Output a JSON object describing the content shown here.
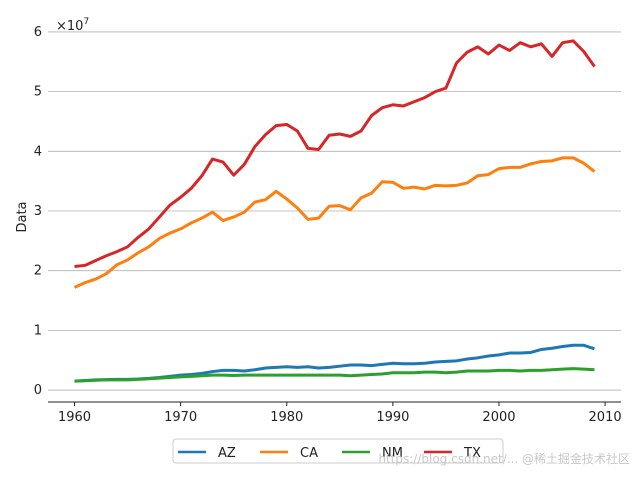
{
  "chart_data": {
    "type": "line",
    "title": "",
    "xlabel": "",
    "ylabel": "Data",
    "y_scale_label": "×10",
    "y_scale_exp": "7",
    "y_multiplier": 10000000,
    "xlim": [
      1957.5,
      2011.5
    ],
    "ylim": [
      -2000000,
      62000000
    ],
    "x_ticks": [
      1960,
      1970,
      1980,
      1990,
      2000,
      2010
    ],
    "x_tick_labels": [
      "1960",
      "1970",
      "1980",
      "1990",
      "2000",
      "2010"
    ],
    "y_ticks": [
      0,
      10000000,
      20000000,
      30000000,
      40000000,
      50000000,
      60000000
    ],
    "y_tick_labels": [
      "0",
      "1",
      "2",
      "3",
      "4",
      "5",
      "6"
    ],
    "grid": "horizontal",
    "legend_position": "bottom-center",
    "x": [
      1960,
      1961,
      1962,
      1963,
      1964,
      1965,
      1966,
      1967,
      1968,
      1969,
      1970,
      1971,
      1972,
      1973,
      1974,
      1975,
      1976,
      1977,
      1978,
      1979,
      1980,
      1981,
      1982,
      1983,
      1984,
      1985,
      1986,
      1987,
      1988,
      1989,
      1990,
      1991,
      1992,
      1993,
      1994,
      1995,
      1996,
      1997,
      1998,
      1999,
      2000,
      2001,
      2002,
      2003,
      2004,
      2005,
      2006,
      2007,
      2008,
      2009
    ],
    "series": [
      {
        "name": "AZ",
        "color": "#1f77b4",
        "values": [
          1500000,
          1600000,
          1700000,
          1750000,
          1800000,
          1800000,
          1850000,
          1950000,
          2100000,
          2300000,
          2500000,
          2600000,
          2800000,
          3100000,
          3300000,
          3300000,
          3200000,
          3400000,
          3700000,
          3800000,
          3900000,
          3800000,
          3900000,
          3700000,
          3800000,
          4000000,
          4200000,
          4200000,
          4100000,
          4300000,
          4500000,
          4400000,
          4400000,
          4500000,
          4700000,
          4800000,
          4900000,
          5200000,
          5400000,
          5700000,
          5900000,
          6200000,
          6200000,
          6300000,
          6800000,
          7000000,
          7300000,
          7500000,
          7500000,
          6900000
        ]
      },
      {
        "name": "CA",
        "color": "#ff7f0e",
        "values": [
          17200000,
          18000000,
          18600000,
          19500000,
          21000000,
          21800000,
          23000000,
          24000000,
          25400000,
          26300000,
          27000000,
          28000000,
          28800000,
          29800000,
          28400000,
          29000000,
          29800000,
          31500000,
          31900000,
          33300000,
          32000000,
          30500000,
          28600000,
          28800000,
          30800000,
          30900000,
          30200000,
          32200000,
          33000000,
          34900000,
          34800000,
          33800000,
          34000000,
          33700000,
          34300000,
          34200000,
          34300000,
          34700000,
          35900000,
          36100000,
          37100000,
          37300000,
          37300000,
          37900000,
          38300000,
          38400000,
          38900000,
          38900000,
          38000000,
          36600000
        ]
      },
      {
        "name": "NM",
        "color": "#2ca02c",
        "values": [
          1500000,
          1550000,
          1650000,
          1700000,
          1700000,
          1700000,
          1800000,
          1900000,
          2000000,
          2100000,
          2200000,
          2300000,
          2400000,
          2500000,
          2500000,
          2450000,
          2500000,
          2500000,
          2500000,
          2500000,
          2500000,
          2500000,
          2500000,
          2500000,
          2500000,
          2500000,
          2400000,
          2500000,
          2600000,
          2700000,
          2900000,
          2900000,
          2900000,
          3000000,
          3000000,
          2900000,
          3000000,
          3200000,
          3200000,
          3200000,
          3300000,
          3300000,
          3200000,
          3300000,
          3300000,
          3400000,
          3500000,
          3600000,
          3500000,
          3400000
        ]
      },
      {
        "name": "TX",
        "color": "#d62728",
        "values": [
          20700000,
          20900000,
          21700000,
          22500000,
          23200000,
          24000000,
          25600000,
          27000000,
          29000000,
          31000000,
          32300000,
          33800000,
          35900000,
          38700000,
          38200000,
          36000000,
          37800000,
          40800000,
          42800000,
          44300000,
          44500000,
          43400000,
          40500000,
          40300000,
          42700000,
          42900000,
          42500000,
          43400000,
          46000000,
          47300000,
          47800000,
          47600000,
          48300000,
          49000000,
          50000000,
          50600000,
          54800000,
          56600000,
          57500000,
          56300000,
          57800000,
          56900000,
          58200000,
          57500000,
          58000000,
          55900000,
          58200000,
          58500000,
          56700000,
          54200000
        ]
      }
    ]
  },
  "watermark": "https://blog.csdn.net/... @稀土掘金技术社区"
}
